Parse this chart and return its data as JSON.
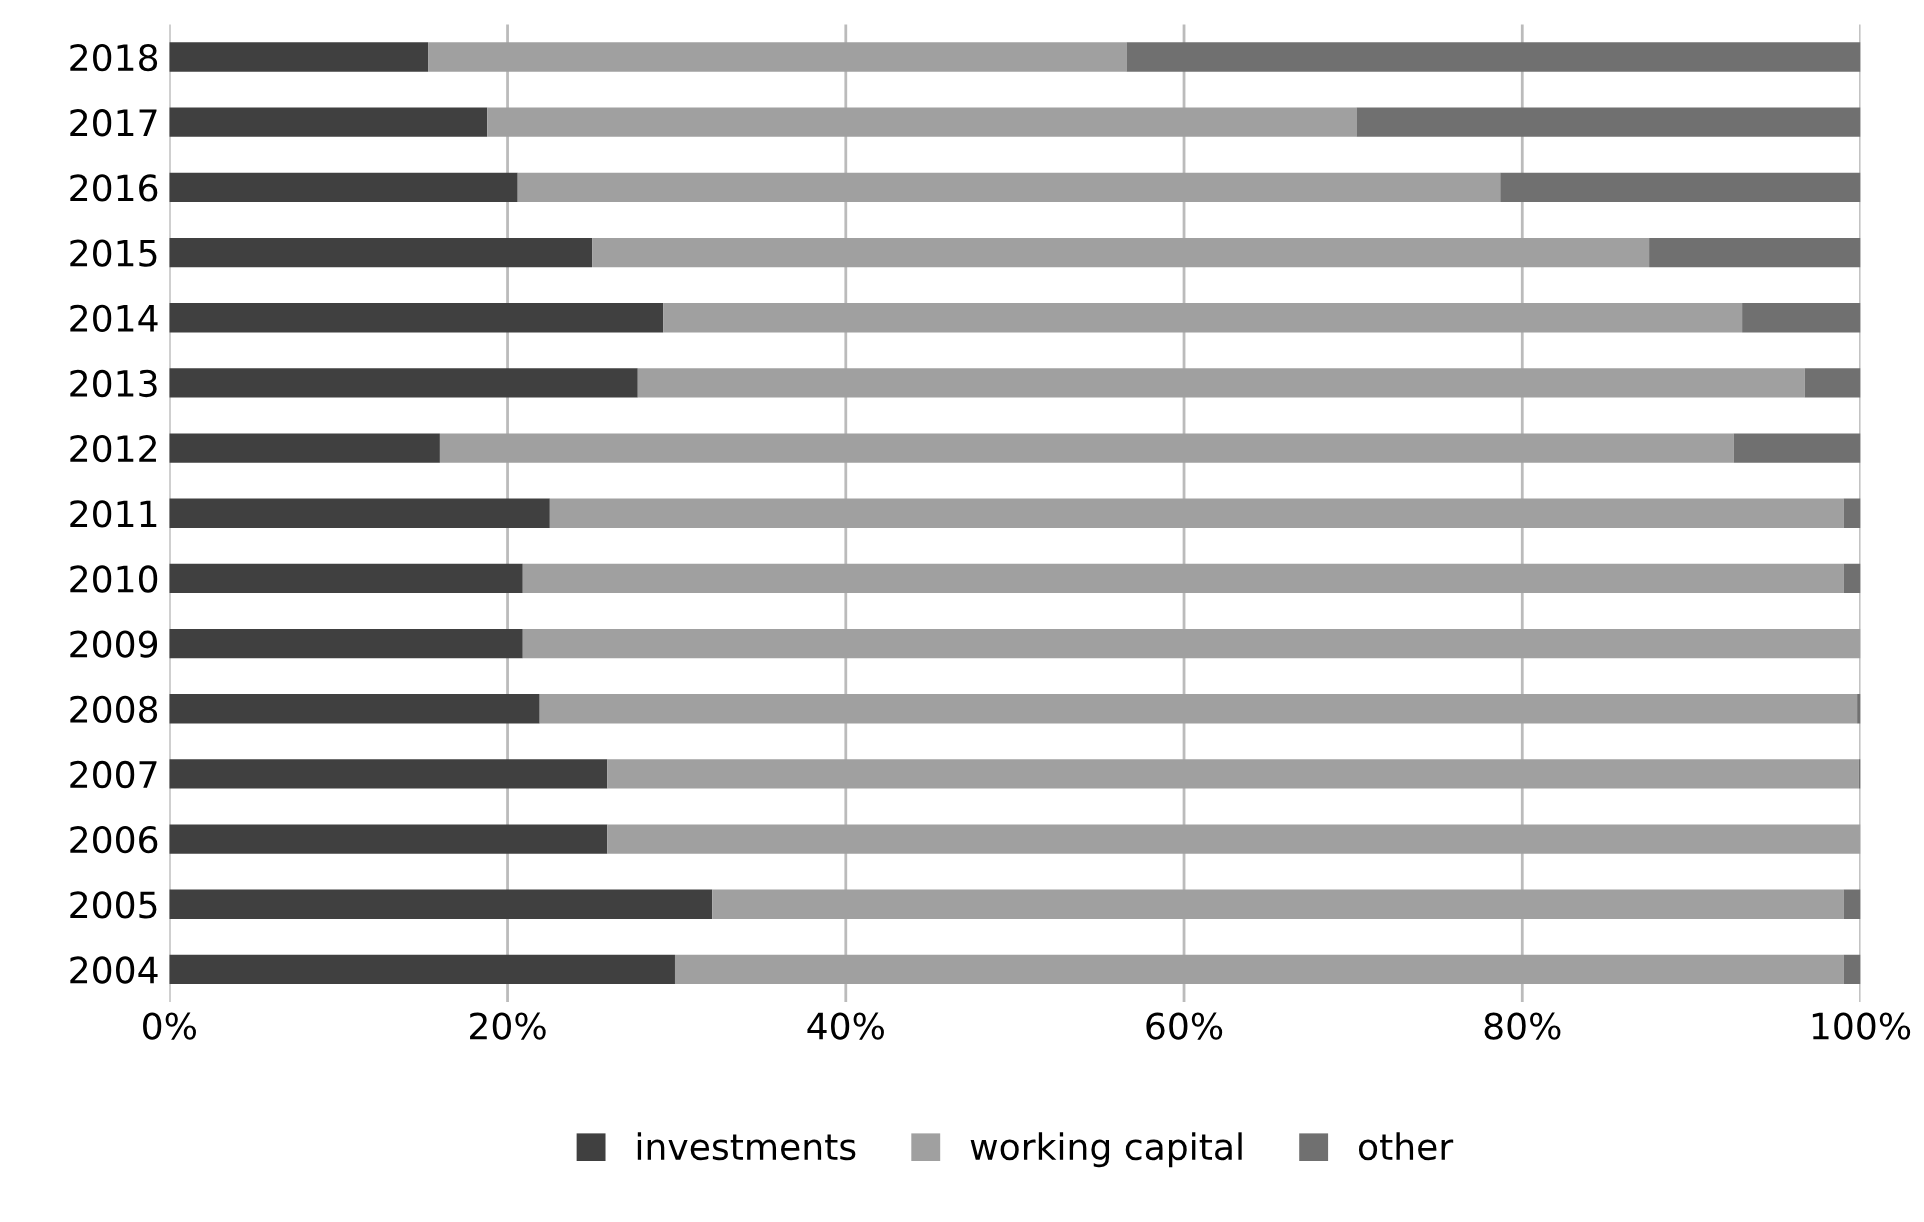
{
  "chart_data": {
    "type": "bar",
    "orientation": "horizontal",
    "stacked": true,
    "categories": [
      "2018",
      "2017",
      "2016",
      "2015",
      "2014",
      "2013",
      "2012",
      "2011",
      "2010",
      "2009",
      "2008",
      "2007",
      "2006",
      "2005",
      "2004"
    ],
    "series": [
      {
        "name": "investments",
        "color": "#404040",
        "values": [
          15.3,
          18.8,
          20.6,
          25.0,
          29.2,
          27.7,
          16.0,
          22.5,
          20.9,
          20.9,
          21.9,
          25.9,
          25.9,
          32.1,
          29.9
        ]
      },
      {
        "name": "working capital",
        "color": "#a0a0a0",
        "values": [
          41.3,
          51.4,
          58.1,
          62.5,
          63.8,
          69.0,
          76.5,
          76.5,
          78.1,
          79.1,
          77.9,
          74.0,
          74.1,
          66.9,
          69.1
        ]
      },
      {
        "name": "other",
        "color": "#707070",
        "values": [
          43.4,
          29.8,
          21.3,
          12.5,
          7.0,
          3.3,
          7.5,
          1.0,
          1.0,
          0,
          0.2,
          0.1,
          0,
          1.0,
          1.0
        ]
      }
    ],
    "xlim": [
      0,
      100
    ],
    "xticks": [
      {
        "value": 0,
        "label": "0%"
      },
      {
        "value": 20,
        "label": "20%"
      },
      {
        "value": 40,
        "label": "40%"
      },
      {
        "value": 60,
        "label": "60%"
      },
      {
        "value": 80,
        "label": "80%"
      },
      {
        "value": 100,
        "label": "100%"
      }
    ],
    "grid": "x",
    "legend": "bottom"
  }
}
